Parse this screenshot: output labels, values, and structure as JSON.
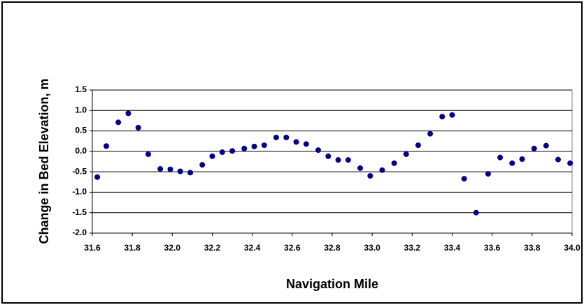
{
  "chart_data": {
    "type": "scatter",
    "x_label": "Navigation Mile",
    "y_label": "Change in Bed Elevation, m",
    "color": "#00008b",
    "grid": true,
    "xlim": [
      31.6,
      34.0
    ],
    "ylim": [
      -2.0,
      1.5
    ],
    "xticks": [
      31.6,
      31.8,
      {
        "value": 32.0,
        "label": "32.0"
      },
      32.2,
      32.4,
      32.6,
      32.8,
      {
        "value": 33.0,
        "label": "33.0"
      },
      33.2,
      33.4,
      33.6,
      33.8,
      {
        "value": 34.0,
        "label": "34.0"
      }
    ],
    "yticks": [
      {
        "value": -2.0,
        "label": "-2.0"
      },
      -1.5,
      {
        "value": -1.0,
        "label": "-1.0"
      },
      -0.5,
      {
        "value": 0.0,
        "label": "0.0"
      },
      0.5,
      {
        "value": 1.0,
        "label": "1.0"
      },
      1.5
    ],
    "x": [
      31.625,
      31.67,
      31.73,
      31.78,
      31.83,
      31.88,
      31.94,
      31.99,
      32.04,
      32.09,
      32.15,
      32.2,
      32.25,
      32.3,
      32.36,
      32.41,
      32.46,
      32.52,
      32.57,
      32.62,
      32.67,
      32.73,
      32.78,
      32.83,
      32.88,
      32.94,
      32.99,
      33.05,
      33.11,
      33.17,
      33.23,
      33.29,
      33.35,
      33.4,
      33.46,
      33.52,
      33.58,
      33.64,
      33.7,
      33.75,
      33.81,
      33.87,
      33.93,
      33.99
    ],
    "values": [
      -0.63,
      0.13,
      0.71,
      0.93,
      0.58,
      -0.07,
      -0.43,
      -0.44,
      -0.49,
      -0.52,
      -0.33,
      -0.12,
      -0.02,
      0.01,
      0.07,
      0.12,
      0.15,
      0.34,
      0.34,
      0.23,
      0.18,
      0.03,
      -0.12,
      -0.21,
      -0.21,
      -0.41,
      -0.6,
      -0.46,
      -0.29,
      -0.07,
      0.15,
      0.43,
      0.85,
      0.89,
      -0.67,
      -1.5,
      -0.55,
      -0.15,
      -0.29,
      -0.19,
      0.07,
      0.14,
      -0.2,
      -0.29
    ]
  }
}
